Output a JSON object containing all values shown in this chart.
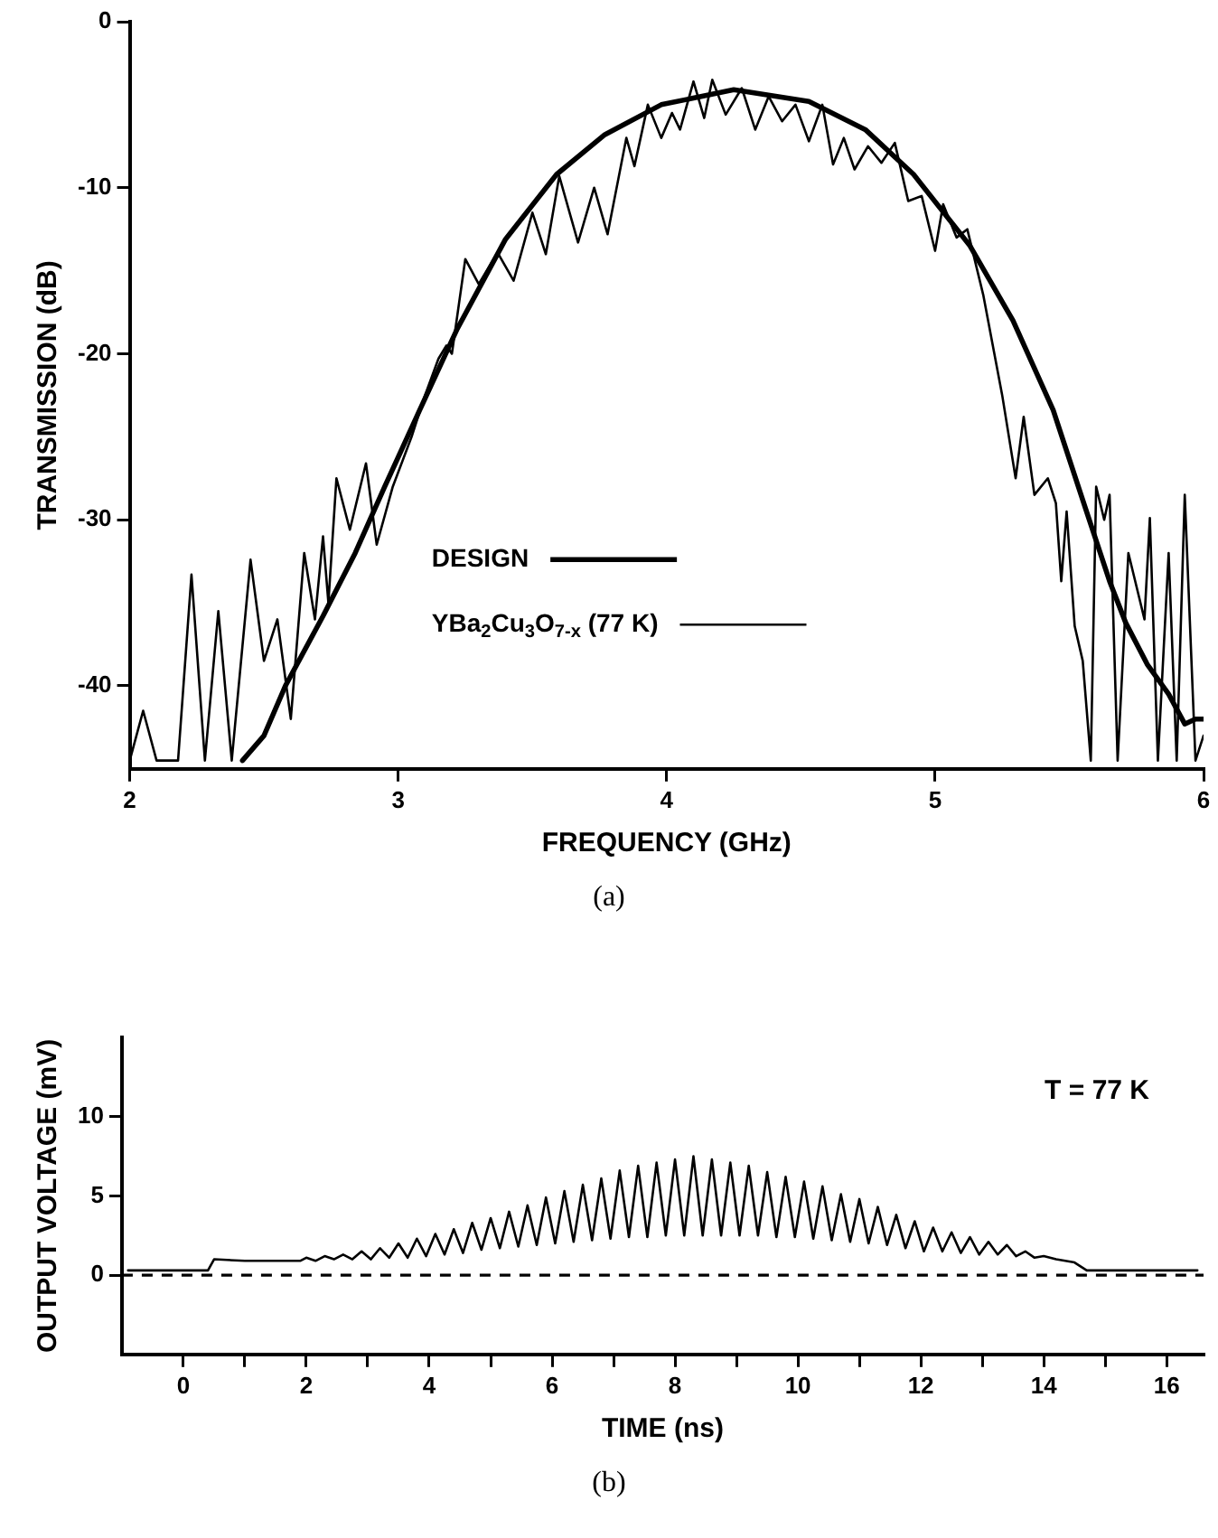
{
  "chart_data": [
    {
      "type": "line",
      "xlabel": "FREQUENCY (GHz)",
      "ylabel": "TRANSMISSION (dB)",
      "xlim": [
        2,
        6
      ],
      "ylim": [
        -45,
        0
      ],
      "xticks": [
        2,
        3,
        4,
        5,
        6
      ],
      "yticks": [
        0,
        -10,
        -20,
        -30,
        -40
      ],
      "legend": "bottom",
      "annotations": [
        "(a)"
      ],
      "series": [
        {
          "name": "DESIGN",
          "color": "#000000",
          "x": [
            2.42,
            2.5,
            2.58,
            2.72,
            2.84,
            2.95,
            3.08,
            3.22,
            3.4,
            3.59,
            3.77,
            3.98,
            4.25,
            4.53,
            4.74,
            4.92,
            5.13,
            5.29,
            5.44,
            5.56,
            5.65,
            5.71,
            5.79,
            5.87,
            5.93,
            5.97,
            6.0
          ],
          "values": [
            -44.5,
            -43,
            -40,
            -35.8,
            -32,
            -28,
            -23.4,
            -18.5,
            -13.1,
            -9.2,
            -6.8,
            -5,
            -4.1,
            -4.8,
            -6.5,
            -9.2,
            -13.5,
            -18,
            -23.4,
            -29.3,
            -33.7,
            -36.2,
            -38.7,
            -40.5,
            -42.3,
            -42,
            -42
          ]
        },
        {
          "name": "YBa$_{2}$Cu$_{3}$O$_{7-x}$ (77 K)",
          "color": "#000000",
          "x": [
            2.0,
            2.05,
            2.1,
            2.18,
            2.23,
            2.28,
            2.33,
            2.38,
            2.45,
            2.5,
            2.55,
            2.6,
            2.65,
            2.69,
            2.72,
            2.74,
            2.77,
            2.82,
            2.88,
            2.92,
            2.98,
            3.05,
            3.1,
            3.15,
            3.18,
            3.2,
            3.25,
            3.3,
            3.37,
            3.43,
            3.5,
            3.55,
            3.6,
            3.67,
            3.73,
            3.78,
            3.85,
            3.88,
            3.93,
            3.98,
            4.02,
            4.05,
            4.1,
            4.14,
            4.17,
            4.22,
            4.28,
            4.33,
            4.38,
            4.43,
            4.48,
            4.53,
            4.58,
            4.62,
            4.66,
            4.7,
            4.75,
            4.8,
            4.85,
            4.9,
            4.95,
            5.0,
            5.03,
            5.08,
            5.12,
            5.18,
            5.25,
            5.3,
            5.33,
            5.37,
            5.42,
            5.45,
            5.47,
            5.49,
            5.52,
            5.55,
            5.58,
            5.6,
            5.63,
            5.65,
            5.68,
            5.72,
            5.78,
            5.8,
            5.83,
            5.87,
            5.9,
            5.93,
            5.97,
            6.0
          ],
          "values": [
            -44.5,
            -41.5,
            -44.5,
            -44.5,
            -33.3,
            -44.5,
            -35.5,
            -44.5,
            -32.4,
            -38.5,
            -36,
            -42,
            -32,
            -36,
            -31,
            -35,
            -27.5,
            -30.6,
            -26.6,
            -31.5,
            -28,
            -25,
            -22.5,
            -20.3,
            -19.5,
            -20,
            -14.3,
            -15.8,
            -13.9,
            -15.6,
            -11.5,
            -14,
            -9.3,
            -13.3,
            -10,
            -12.8,
            -7,
            -8.7,
            -5,
            -7,
            -5.5,
            -6.5,
            -3.6,
            -5.8,
            -3.5,
            -5.6,
            -4,
            -6.5,
            -4.5,
            -6,
            -5,
            -7.2,
            -5,
            -8.6,
            -7,
            -8.9,
            -7.5,
            -8.5,
            -7.3,
            -10.8,
            -10.5,
            -13.8,
            -11,
            -13,
            -12.5,
            -16.5,
            -22.5,
            -27.5,
            -23.8,
            -28.5,
            -27.5,
            -29,
            -33.7,
            -29.5,
            -36.4,
            -38.5,
            -44.5,
            -28,
            -30,
            -28.5,
            -44.5,
            -32,
            -36,
            -29.9,
            -44.5,
            -32,
            -44.5,
            -28.5,
            -44.5,
            -43
          ]
        }
      ]
    },
    {
      "type": "line",
      "xlabel": "TIME (ns)",
      "ylabel": "OUTPUT VOLTAGE (mV)",
      "xlim": [
        -1,
        16.6
      ],
      "ylim": [
        -5,
        15
      ],
      "xticks": [
        0,
        {
          "value": 1,
          "label": null
        },
        2,
        {
          "value": 3,
          "label": null
        },
        4,
        {
          "value": 5,
          "label": null
        },
        6,
        {
          "value": 7,
          "label": null
        },
        8,
        {
          "value": 9,
          "label": null
        },
        10,
        {
          "value": 11,
          "label": null
        },
        12,
        {
          "value": 13,
          "label": null
        },
        14,
        {
          "value": 15,
          "label": null
        },
        16
      ],
      "yticks": [
        0,
        5,
        10
      ],
      "annotations": [
        "T = 77 K",
        "(b)"
      ],
      "ref_lines": [
        {
          "axis": "y",
          "value": 0,
          "color": "#000000",
          "line_style": "dashed"
        }
      ],
      "series": [
        {
          "color": "#000000",
          "x": [
            -0.9,
            0.4,
            0.5,
            1.0,
            1.5,
            1.9,
            2.0,
            2.15,
            2.3,
            2.45,
            2.6,
            2.75,
            2.9,
            3.05,
            3.2,
            3.35,
            3.5,
            3.65,
            3.8,
            3.95,
            4.1,
            4.25,
            4.4,
            4.55,
            4.7,
            4.85,
            5.0,
            5.15,
            5.3,
            5.45,
            5.6,
            5.75,
            5.9,
            6.05,
            6.2,
            6.35,
            6.5,
            6.65,
            6.8,
            6.95,
            7.1,
            7.25,
            7.4,
            7.55,
            7.7,
            7.85,
            8.0,
            8.15,
            8.3,
            8.45,
            8.6,
            8.75,
            8.9,
            9.05,
            9.2,
            9.35,
            9.5,
            9.65,
            9.8,
            9.95,
            10.1,
            10.25,
            10.4,
            10.55,
            10.7,
            10.85,
            11.0,
            11.15,
            11.3,
            11.45,
            11.6,
            11.75,
            11.9,
            12.05,
            12.2,
            12.35,
            12.5,
            12.65,
            12.8,
            12.95,
            13.1,
            13.25,
            13.4,
            13.55,
            13.7,
            13.85,
            14.0,
            14.2,
            14.5,
            14.7,
            15.5,
            16.5
          ],
          "values": [
            0.3,
            0.3,
            1.0,
            0.9,
            0.9,
            0.9,
            1.1,
            0.9,
            1.2,
            1.0,
            1.3,
            1.0,
            1.5,
            1.0,
            1.7,
            1.1,
            2.0,
            1.1,
            2.3,
            1.2,
            2.6,
            1.3,
            2.9,
            1.4,
            3.3,
            1.6,
            3.6,
            1.7,
            4.0,
            1.8,
            4.4,
            1.9,
            4.9,
            2.0,
            5.3,
            2.1,
            5.7,
            2.2,
            6.1,
            2.3,
            6.6,
            2.4,
            6.9,
            2.4,
            7.1,
            2.5,
            7.3,
            2.5,
            7.5,
            2.5,
            7.3,
            2.5,
            7.1,
            2.5,
            6.9,
            2.5,
            6.5,
            2.4,
            6.2,
            2.4,
            5.9,
            2.3,
            5.6,
            2.2,
            5.1,
            2.1,
            4.8,
            2.0,
            4.3,
            1.9,
            3.8,
            1.7,
            3.4,
            1.5,
            3.0,
            1.5,
            2.7,
            1.4,
            2.4,
            1.3,
            2.1,
            1.3,
            1.9,
            1.2,
            1.5,
            1.1,
            1.2,
            1.0,
            0.8,
            0.3,
            0.3,
            0.3
          ]
        }
      ]
    }
  ]
}
